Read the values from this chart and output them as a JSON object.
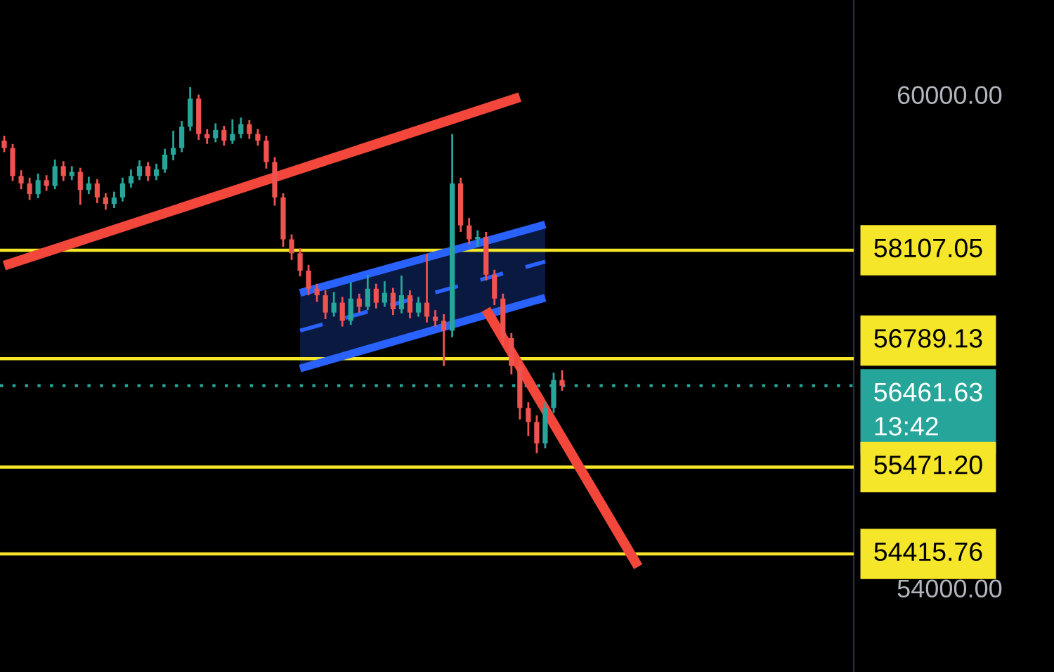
{
  "chart_data": {
    "type": "candlestick",
    "categories": [
      null,
      null,
      null,
      null,
      null,
      null,
      null,
      null,
      null,
      null,
      null,
      null,
      null,
      null,
      null,
      null,
      null,
      null,
      null,
      null,
      null,
      null,
      null,
      null,
      null,
      null,
      null,
      null,
      null,
      null,
      null,
      null,
      null,
      null,
      null,
      null,
      null,
      null,
      null,
      null,
      null,
      null,
      null,
      null,
      null,
      null,
      null,
      null,
      null,
      null,
      null,
      null,
      null,
      null,
      null,
      null,
      null,
      null,
      null,
      null,
      null,
      null,
      null,
      null,
      null,
      null,
      null,
      null,
      null,
      null,
      null,
      null,
      null,
      null,
      null,
      null,
      null,
      null,
      null,
      null,
      null,
      null,
      null,
      null,
      null,
      null,
      null,
      null,
      null,
      null,
      null,
      null,
      null,
      null,
      null,
      null,
      null,
      null,
      null,
      null,
      null
    ],
    "ohlc": [
      [
        59440,
        59500,
        59300,
        59350
      ],
      [
        59350,
        59400,
        58950,
        59010
      ],
      [
        59010,
        59080,
        58850,
        58920
      ],
      [
        58920,
        58990,
        58720,
        58790
      ],
      [
        58790,
        59040,
        58740,
        58960
      ],
      [
        58960,
        59020,
        58830,
        58890
      ],
      [
        58890,
        59210,
        58850,
        59130
      ],
      [
        59130,
        59190,
        58950,
        59010
      ],
      [
        59010,
        59130,
        58960,
        59060
      ],
      [
        59060,
        59110,
        58660,
        58840
      ],
      [
        58840,
        59000,
        58790,
        58920
      ],
      [
        58920,
        58970,
        58680,
        58750
      ],
      [
        58750,
        58800,
        58600,
        58670
      ],
      [
        58670,
        58820,
        58620,
        58750
      ],
      [
        58750,
        58990,
        58700,
        58920
      ],
      [
        58920,
        59090,
        58870,
        59010
      ],
      [
        59010,
        59200,
        58960,
        59130
      ],
      [
        59130,
        59180,
        58950,
        59010
      ],
      [
        59010,
        59160,
        58960,
        59090
      ],
      [
        59090,
        59340,
        59050,
        59270
      ],
      [
        59270,
        59560,
        59200,
        59350
      ],
      [
        59350,
        59680,
        59300,
        59610
      ],
      [
        59610,
        60090,
        59560,
        59950
      ],
      [
        59950,
        60000,
        59450,
        59520
      ],
      [
        59520,
        59580,
        59400,
        59470
      ],
      [
        59470,
        59650,
        59420,
        59570
      ],
      [
        59570,
        59620,
        59380,
        59440
      ],
      [
        59440,
        59700,
        59400,
        59520
      ],
      [
        59520,
        59720,
        59470,
        59640
      ],
      [
        59640,
        59690,
        59460,
        59520
      ],
      [
        59520,
        59580,
        59380,
        59440
      ],
      [
        59440,
        59500,
        59100,
        59180
      ],
      [
        59180,
        59240,
        58650,
        58750
      ],
      [
        58750,
        58800,
        58150,
        58240
      ],
      [
        58240,
        58300,
        57990,
        58070
      ],
      [
        58070,
        58130,
        57790,
        57860
      ],
      [
        57860,
        57930,
        57560,
        57640
      ],
      [
        57640,
        57700,
        57480,
        57560
      ],
      [
        57560,
        57620,
        57270,
        57350
      ],
      [
        57350,
        57600,
        57300,
        57470
      ],
      [
        57470,
        57540,
        57180,
        57250
      ],
      [
        57250,
        57720,
        57200,
        57520
      ],
      [
        57520,
        57580,
        57350,
        57420
      ],
      [
        57420,
        57810,
        57380,
        57640
      ],
      [
        57640,
        57700,
        57400,
        57470
      ],
      [
        57470,
        57730,
        57420,
        57590
      ],
      [
        57590,
        57650,
        57320,
        57390
      ],
      [
        57390,
        57800,
        57340,
        57560
      ],
      [
        57560,
        57620,
        57280,
        57350
      ],
      [
        57350,
        57540,
        57300,
        57470
      ],
      [
        57470,
        58060,
        57230,
        57300
      ],
      [
        57300,
        57380,
        57180,
        57250
      ],
      [
        57250,
        57330,
        56700,
        57130
      ],
      [
        57130,
        59520,
        57050,
        58920
      ],
      [
        58920,
        58990,
        58330,
        58410
      ],
      [
        58410,
        58500,
        58180,
        58240
      ],
      [
        58240,
        58350,
        58150,
        58270
      ],
      [
        58270,
        58330,
        57740,
        57810
      ],
      [
        57810,
        57870,
        57440,
        57520
      ],
      [
        57520,
        57580,
        56950,
        57040
      ],
      [
        57040,
        57100,
        56600,
        56700
      ],
      [
        56700,
        56760,
        56050,
        56190
      ],
      [
        56190,
        56260,
        55850,
        56020
      ],
      [
        56020,
        56100,
        55640,
        55760
      ],
      [
        55760,
        56260,
        55700,
        56190
      ],
      [
        56190,
        56620,
        56130,
        56530
      ],
      [
        56530,
        56650,
        56400,
        56460
      ],
      null,
      null,
      null,
      null,
      null,
      null,
      null,
      null,
      null,
      null,
      null,
      null,
      null,
      null,
      null,
      null,
      null,
      null,
      null,
      null,
      null,
      null,
      null,
      null,
      null,
      null,
      null,
      null,
      null,
      null,
      null,
      null,
      null,
      null
    ],
    "colors": [
      "#ef5350",
      "#ef5350",
      "#ef5350",
      "#ef5350",
      "#26a69a",
      "#ef5350",
      "#26a69a",
      "#ef5350",
      "#26a69a",
      "#ef5350",
      "#26a69a",
      "#ef5350",
      "#ef5350",
      "#26a69a",
      "#26a69a",
      "#26a69a",
      "#26a69a",
      "#ef5350",
      "#26a69a",
      "#26a69a",
      "#26a69a",
      "#26a69a",
      "#26a69a",
      "#ef5350",
      "#ef5350",
      "#26a69a",
      "#ef5350",
      "#26a69a",
      "#26a69a",
      "#ef5350",
      "#ef5350",
      "#ef5350",
      "#ef5350",
      "#ef5350",
      "#ef5350",
      "#ef5350",
      "#ef5350",
      "#ef5350",
      "#ef5350",
      "#26a69a",
      "#ef5350",
      "#26a69a",
      "#ef5350",
      "#26a69a",
      "#ef5350",
      "#26a69a",
      "#ef5350",
      "#26a69a",
      "#ef5350",
      "#26a69a",
      "#ef5350",
      "#ef5350",
      "#ef5350",
      "#26a69a",
      "#ef5350",
      "#ef5350",
      "#26a69a",
      "#ef5350",
      "#ef5350",
      "#ef5350",
      "#ef5350",
      "#ef5350",
      "#ef5350",
      "#ef5350",
      "#26a69a",
      "#26a69a",
      "#ef5350",
      null,
      null,
      null,
      null,
      null,
      null,
      null,
      null,
      null,
      null,
      null,
      null,
      null,
      null,
      null,
      null,
      null,
      null,
      null,
      null,
      null,
      null,
      null,
      null,
      null,
      null,
      null,
      null,
      null,
      null,
      null,
      null,
      null,
      null
    ],
    "series": [
      {
        "type": "line",
        "color": "#f2473a",
        "values": [
          57920,
          null,
          null,
          null,
          null,
          null,
          null,
          null,
          null,
          null,
          null,
          null,
          null,
          null,
          null,
          null,
          null,
          null,
          null,
          null,
          null,
          null,
          null,
          null,
          null,
          null,
          null,
          null,
          null,
          null,
          null,
          null,
          null,
          null,
          null,
          null,
          null,
          null,
          null,
          null,
          null,
          null,
          null,
          null,
          null,
          null,
          null,
          null,
          null,
          null,
          null,
          null,
          null,
          null,
          null,
          null,
          null,
          null,
          null,
          null,
          null,
          59970,
          null,
          null,
          null,
          null,
          null,
          null,
          null,
          null,
          null,
          null,
          null,
          null,
          null,
          null,
          null,
          null,
          null,
          null,
          null,
          null,
          null,
          null,
          null,
          null,
          null,
          null,
          null,
          null,
          null,
          null,
          null,
          null,
          null,
          null,
          null,
          null,
          null,
          null,
          null
        ]
      },
      {
        "type": "line",
        "color": "#2962ff",
        "values": [
          null,
          null,
          null,
          null,
          null,
          null,
          null,
          null,
          null,
          null,
          null,
          null,
          null,
          null,
          null,
          null,
          null,
          null,
          null,
          null,
          null,
          null,
          null,
          null,
          null,
          null,
          null,
          null,
          null,
          null,
          null,
          null,
          null,
          null,
          null,
          57590,
          null,
          null,
          null,
          null,
          null,
          null,
          null,
          null,
          null,
          null,
          null,
          null,
          null,
          null,
          null,
          null,
          null,
          null,
          null,
          null,
          null,
          null,
          null,
          null,
          null,
          null,
          null,
          null,
          58420,
          null,
          null,
          null,
          null,
          null,
          null,
          null,
          null,
          null,
          null,
          null,
          null,
          null,
          null,
          null,
          null,
          null,
          null,
          null,
          null,
          null,
          null,
          null,
          null,
          null,
          null,
          null,
          null,
          null,
          null,
          null,
          null,
          null,
          null,
          null,
          null
        ]
      },
      {
        "type": "line",
        "color": "#2962ff",
        "values": [
          null,
          null,
          null,
          null,
          null,
          null,
          null,
          null,
          null,
          null,
          null,
          null,
          null,
          null,
          null,
          null,
          null,
          null,
          null,
          null,
          null,
          null,
          null,
          null,
          null,
          null,
          null,
          null,
          null,
          null,
          null,
          null,
          null,
          null,
          null,
          56670,
          null,
          null,
          null,
          null,
          null,
          null,
          null,
          null,
          null,
          null,
          null,
          null,
          null,
          null,
          null,
          null,
          null,
          null,
          null,
          null,
          null,
          null,
          null,
          null,
          null,
          null,
          null,
          null,
          57530,
          null,
          null,
          null,
          null,
          null,
          null,
          null,
          null,
          null,
          null,
          null,
          null,
          null,
          null,
          null,
          null,
          null,
          null,
          null,
          null,
          null,
          null,
          null,
          null,
          null,
          null,
          null,
          null,
          null,
          null,
          null,
          null,
          null,
          null,
          null,
          null
        ]
      },
      {
        "type": "line",
        "color": "#2962ff",
        "line_style": "dashed",
        "values": [
          null,
          null,
          null,
          null,
          null,
          null,
          null,
          null,
          null,
          null,
          null,
          null,
          null,
          null,
          null,
          null,
          null,
          null,
          null,
          null,
          null,
          null,
          null,
          null,
          null,
          null,
          null,
          null,
          null,
          null,
          null,
          null,
          null,
          null,
          null,
          57130,
          null,
          null,
          null,
          null,
          null,
          null,
          null,
          null,
          null,
          null,
          null,
          null,
          null,
          null,
          null,
          null,
          null,
          null,
          null,
          null,
          null,
          null,
          null,
          null,
          null,
          null,
          null,
          null,
          57970,
          null,
          null,
          null,
          null,
          null,
          null,
          null,
          null,
          null,
          null,
          null,
          null,
          null,
          null,
          null,
          null,
          null,
          null,
          null,
          null,
          null,
          null,
          null,
          null,
          null,
          null,
          null,
          null,
          null,
          null,
          null,
          null,
          null,
          null,
          null,
          null
        ],
        "lower": [
          null,
          null,
          null,
          null,
          null,
          null,
          null,
          null,
          null,
          null,
          null,
          null,
          null,
          null,
          null,
          null,
          null,
          null,
          null,
          null,
          null,
          null,
          null,
          null,
          null,
          null,
          null,
          null,
          null,
          null,
          null,
          null,
          null,
          null,
          null,
          56670,
          null,
          null,
          null,
          null,
          null,
          null,
          null,
          null,
          null,
          null,
          null,
          null,
          null,
          null,
          null,
          null,
          null,
          null,
          null,
          null,
          null,
          null,
          null,
          null,
          null,
          null,
          null,
          null,
          57530,
          null,
          null,
          null,
          null,
          null,
          null,
          null,
          null,
          null,
          null,
          null,
          null,
          null,
          null,
          null,
          null,
          null,
          null,
          null,
          null,
          null,
          null,
          null,
          null,
          null,
          null,
          null,
          null,
          null,
          null,
          null,
          null,
          null,
          null,
          null,
          null
        ],
        "upper": [
          null,
          null,
          null,
          null,
          null,
          null,
          null,
          null,
          null,
          null,
          null,
          null,
          null,
          null,
          null,
          null,
          null,
          null,
          null,
          null,
          null,
          null,
          null,
          null,
          null,
          null,
          null,
          null,
          null,
          null,
          null,
          null,
          null,
          null,
          null,
          57590,
          null,
          null,
          null,
          null,
          null,
          null,
          null,
          null,
          null,
          null,
          null,
          null,
          null,
          null,
          null,
          null,
          null,
          null,
          null,
          null,
          null,
          null,
          null,
          null,
          null,
          null,
          null,
          null,
          58420,
          null,
          null,
          null,
          null,
          null,
          null,
          null,
          null,
          null,
          null,
          null,
          null,
          null,
          null,
          null,
          null,
          null,
          null,
          null,
          null,
          null,
          null,
          null,
          null,
          null,
          null,
          null,
          null,
          null,
          null,
          null,
          null,
          null,
          null,
          null,
          null
        ]
      },
      {
        "type": "line",
        "color": "#f2473a",
        "values": [
          null,
          null,
          null,
          null,
          null,
          null,
          null,
          null,
          null,
          null,
          null,
          null,
          null,
          null,
          null,
          null,
          null,
          null,
          null,
          null,
          null,
          null,
          null,
          null,
          null,
          null,
          null,
          null,
          null,
          null,
          null,
          null,
          null,
          null,
          null,
          null,
          null,
          null,
          null,
          null,
          null,
          null,
          null,
          null,
          null,
          null,
          null,
          null,
          null,
          null,
          null,
          null,
          null,
          null,
          null,
          null,
          null,
          57390,
          null,
          null,
          null,
          null,
          null,
          null,
          null,
          null,
          null,
          null,
          null,
          null,
          null,
          null,
          null,
          null,
          null,
          54260,
          null,
          null,
          null,
          null,
          null,
          null,
          null,
          null,
          null,
          null,
          null,
          null,
          null,
          null,
          null,
          null,
          null,
          null,
          null,
          null,
          null,
          null,
          null,
          null,
          null
        ]
      }
    ],
    "ylim": [
      52980,
      61150
    ],
    "yticks": [
      {
        "value": 60000,
        "label": "60000.00"
      },
      {
        "value": 54000,
        "label": "54000.00"
      }
    ],
    "ref_lines": [
      {
        "axis": "y",
        "value": 58107.05,
        "label": "58107.05",
        "color": "#f5e62a"
      },
      {
        "axis": "y",
        "value": 56789.13,
        "label": "56789.13",
        "color": "#f5e62a"
      },
      {
        "axis": "y",
        "value": 56461.63,
        "label": "56461.63\n13:42",
        "color": "#26a69a",
        "line_style": "dotted"
      },
      {
        "axis": "y",
        "value": 55471.2,
        "label": "55471.20",
        "color": "#f5e62a"
      },
      {
        "axis": "y",
        "value": 54415.76,
        "label": "54415.76",
        "color": "#f5e62a"
      }
    ],
    "grid": false
  }
}
